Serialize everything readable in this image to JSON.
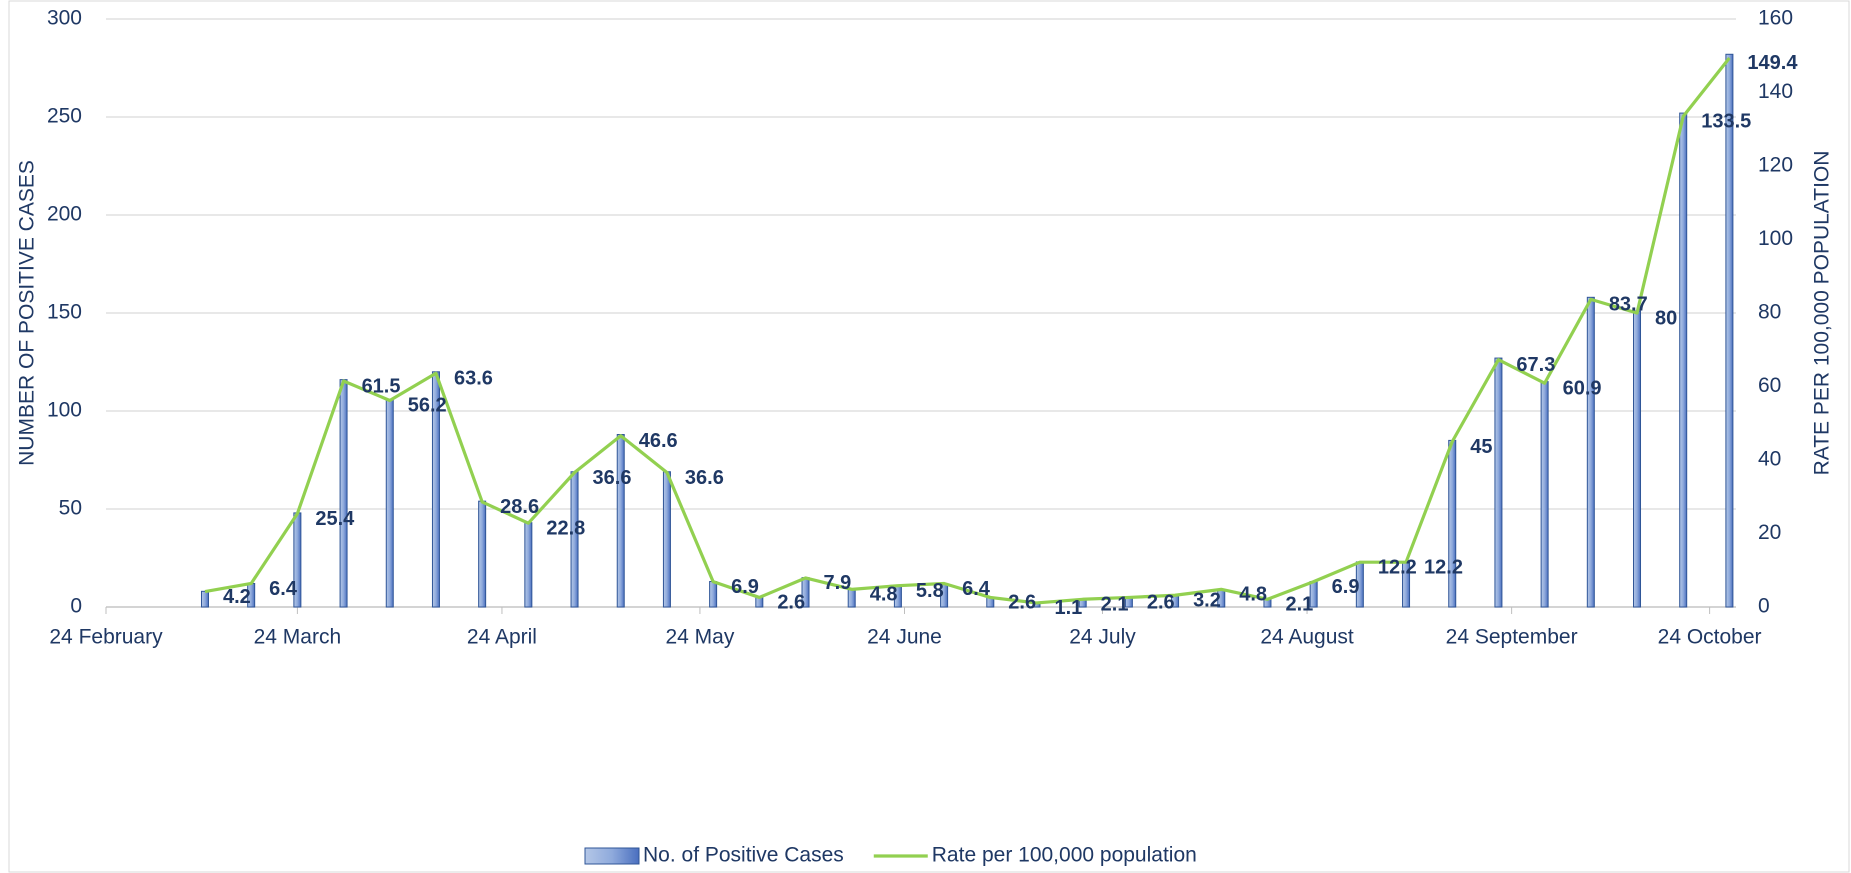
{
  "chart_data": {
    "type": "bar",
    "y_label": "NUMBER OF POSITIVE CASES",
    "y2_label": "RATE  PER 100,000 POPULATION",
    "x": [
      "03-10",
      "03-17",
      "03-24",
      "03-31",
      "04-07",
      "04-14",
      "04-21",
      "04-28",
      "05-05",
      "05-12",
      "05-19",
      "05-26",
      "06-02",
      "06-09",
      "06-16",
      "06-23",
      "06-30",
      "07-07",
      "07-14",
      "07-21",
      "07-28",
      "08-04",
      "08-11",
      "08-18",
      "08-25",
      "09-01",
      "09-08",
      "09-15",
      "09-22",
      "09-29",
      "10-06",
      "10-13",
      "10-20",
      "10-27"
    ],
    "xlim": [
      "02-24",
      "10-28"
    ],
    "xticks": [
      {
        "value": "02-24",
        "label": "24 February"
      },
      {
        "value": "03-24",
        "label": "24 March"
      },
      {
        "value": "04-24",
        "label": "24 April"
      },
      {
        "value": "05-24",
        "label": "24 May"
      },
      {
        "value": "06-24",
        "label": "24 June"
      },
      {
        "value": "07-24",
        "label": "24 July"
      },
      {
        "value": "08-24",
        "label": "24 August"
      },
      {
        "value": "09-24",
        "label": "24 September"
      },
      {
        "value": "10-24",
        "label": "24 October"
      }
    ],
    "ylim": [
      0,
      300
    ],
    "yticks": [
      0,
      50,
      100,
      150,
      200,
      250,
      300
    ],
    "y2lim": [
      0,
      160
    ],
    "y2ticks": [
      0,
      20,
      40,
      60,
      80,
      100,
      120,
      140,
      160
    ],
    "grid": true,
    "legend": "bottom",
    "series": [
      {
        "name": "No. of Positive Cases",
        "type": "bar",
        "color": "#8faadc",
        "values": [
          8,
          12,
          48,
          116,
          106,
          120,
          54,
          43,
          69,
          88,
          69,
          13,
          5,
          15,
          9,
          11,
          12,
          5,
          2,
          4,
          5,
          6,
          9,
          4,
          13,
          23,
          23,
          85,
          127,
          115,
          158,
          151,
          252,
          282
        ]
      },
      {
        "name": "Rate per 100,000 population",
        "type": "line",
        "axis": "y2",
        "color": "#92d050",
        "data_labels": true,
        "values": [
          4.2,
          6.4,
          25.4,
          61.5,
          56.2,
          63.6,
          28.6,
          22.8,
          36.6,
          46.6,
          36.6,
          6.9,
          2.6,
          7.9,
          4.8,
          5.8,
          6.4,
          2.6,
          1.1,
          2.1,
          2.6,
          3.2,
          4.8,
          2.1,
          6.9,
          12.2,
          12.2,
          45,
          67.3,
          60.9,
          83.7,
          80,
          133.5,
          149.4
        ]
      }
    ]
  }
}
